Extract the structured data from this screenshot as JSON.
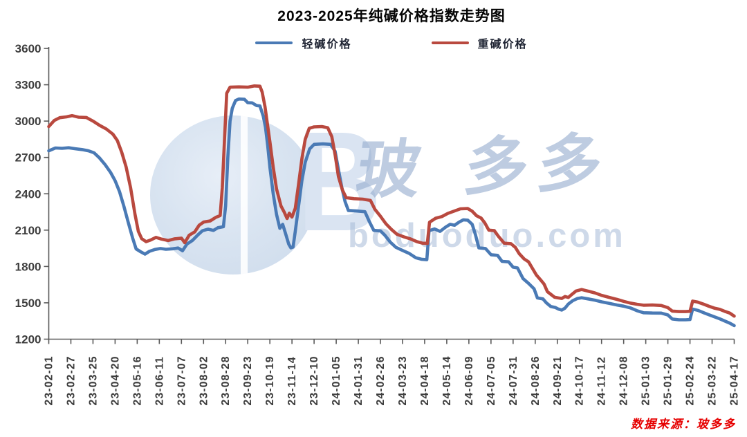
{
  "title": "2023-2025年纯碱价格指数走势图",
  "legend": [
    {
      "label": "轻碱价格",
      "color": "#4a7ab5"
    },
    {
      "label": "重碱价格",
      "color": "#b9493f"
    }
  ],
  "source_note": "数据来源：玻多多",
  "watermark": {
    "logo_letter": "B",
    "brand_chars": [
      "玻",
      "多",
      "多"
    ],
    "domain": "boduoduo.com"
  },
  "colors": {
    "axis": "#595959",
    "tick_label": "#3d3d3d",
    "title": "#050505",
    "source": "#e60000"
  },
  "chart_data": {
    "type": "line",
    "title": "2023-2025年纯碱价格指数走势图",
    "xlabel": "",
    "ylabel": "",
    "ylim": [
      1200,
      3600
    ],
    "y_ticks": [
      3600,
      3300,
      3000,
      2700,
      2400,
      2100,
      1800,
      1500,
      1200
    ],
    "grid": false,
    "legend_position": "top",
    "x_note": "series points use fractional tick index 0-31 mapped to x_tick_labels dates",
    "x_tick_labels": [
      "23-02-01",
      "23-02-27",
      "23-03-25",
      "23-04-20",
      "23-05-16",
      "23-06-11",
      "23-07-07",
      "23-08-02",
      "23-08-28",
      "23-09-23",
      "23-10-19",
      "23-11-14",
      "23-12-10",
      "24-01-05",
      "24-01-31",
      "24-02-26",
      "24-03-23",
      "24-04-18",
      "24-05-14",
      "24-06-09",
      "24-07-05",
      "24-07-31",
      "24-08-26",
      "24-09-21",
      "24-10-17",
      "24-11-12",
      "24-12-08",
      "25-01-03",
      "25-01-29",
      "25-02-24",
      "25-03-22",
      "25-04-17"
    ],
    "series": [
      {
        "name": "轻碱价格",
        "color": "#4a7ab5",
        "points": [
          [
            0,
            2755
          ],
          [
            0.3,
            2778
          ],
          [
            0.6,
            2775
          ],
          [
            0.9,
            2780
          ],
          [
            1.2,
            2772
          ],
          [
            1.5,
            2765
          ],
          [
            1.8,
            2755
          ],
          [
            2.05,
            2738
          ],
          [
            2.3,
            2695
          ],
          [
            2.55,
            2640
          ],
          [
            2.8,
            2575
          ],
          [
            3.0,
            2508
          ],
          [
            3.2,
            2418
          ],
          [
            3.4,
            2295
          ],
          [
            3.6,
            2160
          ],
          [
            3.8,
            2030
          ],
          [
            3.95,
            1945
          ],
          [
            4.15,
            1922
          ],
          [
            4.35,
            1902
          ],
          [
            4.55,
            1925
          ],
          [
            4.8,
            1940
          ],
          [
            5.05,
            1948
          ],
          [
            5.3,
            1942
          ],
          [
            5.6,
            1946
          ],
          [
            5.85,
            1952
          ],
          [
            6.05,
            1930
          ],
          [
            6.25,
            1985
          ],
          [
            6.5,
            2015
          ],
          [
            6.75,
            2062
          ],
          [
            6.95,
            2095
          ],
          [
            7.2,
            2108
          ],
          [
            7.45,
            2098
          ],
          [
            7.65,
            2120
          ],
          [
            7.9,
            2128
          ],
          [
            8.0,
            2300
          ],
          [
            8.1,
            2700
          ],
          [
            8.2,
            3000
          ],
          [
            8.3,
            3105
          ],
          [
            8.45,
            3170
          ],
          [
            8.6,
            3182
          ],
          [
            8.85,
            3180
          ],
          [
            9.0,
            3152
          ],
          [
            9.2,
            3150
          ],
          [
            9.4,
            3128
          ],
          [
            9.55,
            3125
          ],
          [
            9.7,
            3040
          ],
          [
            9.8,
            2950
          ],
          [
            9.9,
            2800
          ],
          [
            10.0,
            2620
          ],
          [
            10.15,
            2400
          ],
          [
            10.3,
            2230
          ],
          [
            10.45,
            2115
          ],
          [
            10.58,
            2148
          ],
          [
            10.72,
            2065
          ],
          [
            10.85,
            1985
          ],
          [
            10.95,
            1954
          ],
          [
            11.05,
            1960
          ],
          [
            11.15,
            2090
          ],
          [
            11.3,
            2300
          ],
          [
            11.45,
            2510
          ],
          [
            11.6,
            2660
          ],
          [
            11.8,
            2770
          ],
          [
            12.0,
            2808
          ],
          [
            12.4,
            2812
          ],
          [
            12.75,
            2808
          ],
          [
            12.95,
            2750
          ],
          [
            13.1,
            2600
          ],
          [
            13.25,
            2455
          ],
          [
            13.4,
            2335
          ],
          [
            13.55,
            2262
          ],
          [
            13.9,
            2258
          ],
          [
            14.3,
            2252
          ],
          [
            14.5,
            2170
          ],
          [
            14.7,
            2098
          ],
          [
            15.0,
            2094
          ],
          [
            15.2,
            2058
          ],
          [
            15.45,
            2000
          ],
          [
            15.7,
            1958
          ],
          [
            16.0,
            1932
          ],
          [
            16.3,
            1908
          ],
          [
            16.6,
            1872
          ],
          [
            16.85,
            1860
          ],
          [
            17.1,
            1856
          ],
          [
            17.2,
            2095
          ],
          [
            17.45,
            2110
          ],
          [
            17.7,
            2090
          ],
          [
            17.95,
            2125
          ],
          [
            18.15,
            2148
          ],
          [
            18.35,
            2140
          ],
          [
            18.55,
            2165
          ],
          [
            18.75,
            2185
          ],
          [
            18.95,
            2182
          ],
          [
            19.15,
            2148
          ],
          [
            19.3,
            2060
          ],
          [
            19.45,
            1954
          ],
          [
            19.75,
            1948
          ],
          [
            20.0,
            1897
          ],
          [
            20.3,
            1892
          ],
          [
            20.5,
            1842
          ],
          [
            20.8,
            1838
          ],
          [
            21.0,
            1794
          ],
          [
            21.2,
            1788
          ],
          [
            21.45,
            1700
          ],
          [
            21.7,
            1660
          ],
          [
            21.95,
            1615
          ],
          [
            22.1,
            1540
          ],
          [
            22.35,
            1532
          ],
          [
            22.5,
            1500
          ],
          [
            22.7,
            1470
          ],
          [
            22.9,
            1462
          ],
          [
            23.05,
            1448
          ],
          [
            23.2,
            1440
          ],
          [
            23.35,
            1456
          ],
          [
            23.5,
            1490
          ],
          [
            23.7,
            1518
          ],
          [
            23.9,
            1535
          ],
          [
            24.1,
            1542
          ],
          [
            24.4,
            1532
          ],
          [
            24.7,
            1522
          ],
          [
            25.0,
            1508
          ],
          [
            25.35,
            1495
          ],
          [
            25.7,
            1482
          ],
          [
            26.0,
            1472
          ],
          [
            26.3,
            1458
          ],
          [
            26.6,
            1435
          ],
          [
            26.9,
            1418
          ],
          [
            27.3,
            1416
          ],
          [
            27.7,
            1415
          ],
          [
            28.0,
            1400
          ],
          [
            28.2,
            1366
          ],
          [
            28.5,
            1360
          ],
          [
            28.8,
            1360
          ],
          [
            29.0,
            1362
          ],
          [
            29.12,
            1448
          ],
          [
            29.35,
            1438
          ],
          [
            29.6,
            1420
          ],
          [
            29.85,
            1402
          ],
          [
            30.1,
            1385
          ],
          [
            30.35,
            1368
          ],
          [
            30.6,
            1348
          ],
          [
            30.8,
            1332
          ],
          [
            31,
            1312
          ]
        ]
      },
      {
        "name": "重碱价格",
        "color": "#b9493f",
        "points": [
          [
            0,
            2955
          ],
          [
            0.25,
            3005
          ],
          [
            0.5,
            3028
          ],
          [
            0.8,
            3035
          ],
          [
            1.05,
            3045
          ],
          [
            1.35,
            3032
          ],
          [
            1.7,
            3030
          ],
          [
            2.0,
            3000
          ],
          [
            2.3,
            2965
          ],
          [
            2.6,
            2935
          ],
          [
            2.9,
            2892
          ],
          [
            3.1,
            2840
          ],
          [
            3.3,
            2742
          ],
          [
            3.5,
            2620
          ],
          [
            3.7,
            2450
          ],
          [
            3.9,
            2230
          ],
          [
            4.05,
            2090
          ],
          [
            4.2,
            2030
          ],
          [
            4.4,
            2005
          ],
          [
            4.6,
            2018
          ],
          [
            4.85,
            2040
          ],
          [
            5.1,
            2026
          ],
          [
            5.4,
            2014
          ],
          [
            5.7,
            2028
          ],
          [
            6.0,
            2034
          ],
          [
            6.15,
            1996
          ],
          [
            6.35,
            2058
          ],
          [
            6.6,
            2085
          ],
          [
            6.8,
            2140
          ],
          [
            7.0,
            2166
          ],
          [
            7.3,
            2176
          ],
          [
            7.55,
            2205
          ],
          [
            7.75,
            2220
          ],
          [
            7.85,
            2450
          ],
          [
            7.95,
            2850
          ],
          [
            8.05,
            3230
          ],
          [
            8.2,
            3280
          ],
          [
            8.6,
            3282
          ],
          [
            9.0,
            3280
          ],
          [
            9.3,
            3290
          ],
          [
            9.55,
            3288
          ],
          [
            9.65,
            3240
          ],
          [
            9.78,
            3120
          ],
          [
            9.9,
            2960
          ],
          [
            10.0,
            2830
          ],
          [
            10.15,
            2620
          ],
          [
            10.3,
            2440
          ],
          [
            10.5,
            2300
          ],
          [
            10.65,
            2248
          ],
          [
            10.78,
            2196
          ],
          [
            10.88,
            2240
          ],
          [
            11.0,
            2208
          ],
          [
            11.15,
            2280
          ],
          [
            11.3,
            2480
          ],
          [
            11.45,
            2690
          ],
          [
            11.6,
            2850
          ],
          [
            11.78,
            2940
          ],
          [
            12.0,
            2952
          ],
          [
            12.35,
            2955
          ],
          [
            12.62,
            2945
          ],
          [
            12.8,
            2872
          ],
          [
            12.95,
            2722
          ],
          [
            13.1,
            2542
          ],
          [
            13.28,
            2432
          ],
          [
            13.45,
            2368
          ],
          [
            13.8,
            2360
          ],
          [
            14.2,
            2356
          ],
          [
            14.55,
            2345
          ],
          [
            14.75,
            2272
          ],
          [
            15.0,
            2215
          ],
          [
            15.25,
            2152
          ],
          [
            15.5,
            2105
          ],
          [
            15.75,
            2065
          ],
          [
            16.05,
            2045
          ],
          [
            16.35,
            2028
          ],
          [
            16.65,
            2005
          ],
          [
            16.9,
            1992
          ],
          [
            17.12,
            1990
          ],
          [
            17.22,
            2165
          ],
          [
            17.5,
            2198
          ],
          [
            17.78,
            2212
          ],
          [
            18.05,
            2238
          ],
          [
            18.35,
            2258
          ],
          [
            18.62,
            2276
          ],
          [
            18.95,
            2278
          ],
          [
            19.15,
            2256
          ],
          [
            19.35,
            2218
          ],
          [
            19.55,
            2200
          ],
          [
            19.72,
            2160
          ],
          [
            19.9,
            2100
          ],
          [
            20.15,
            2096
          ],
          [
            20.35,
            2046
          ],
          [
            20.6,
            1992
          ],
          [
            20.9,
            1988
          ],
          [
            21.1,
            1958
          ],
          [
            21.28,
            1905
          ],
          [
            21.5,
            1862
          ],
          [
            21.7,
            1838
          ],
          [
            21.88,
            1782
          ],
          [
            22.05,
            1730
          ],
          [
            22.25,
            1688
          ],
          [
            22.4,
            1655
          ],
          [
            22.55,
            1592
          ],
          [
            22.72,
            1568
          ],
          [
            22.88,
            1546
          ],
          [
            23.05,
            1540
          ],
          [
            23.2,
            1536
          ],
          [
            23.35,
            1552
          ],
          [
            23.5,
            1544
          ],
          [
            23.65,
            1568
          ],
          [
            23.85,
            1598
          ],
          [
            24.1,
            1610
          ],
          [
            24.4,
            1596
          ],
          [
            24.7,
            1582
          ],
          [
            25.0,
            1562
          ],
          [
            25.35,
            1545
          ],
          [
            25.7,
            1528
          ],
          [
            26.0,
            1512
          ],
          [
            26.3,
            1498
          ],
          [
            26.6,
            1488
          ],
          [
            26.9,
            1480
          ],
          [
            27.3,
            1482
          ],
          [
            27.7,
            1478
          ],
          [
            28.0,
            1460
          ],
          [
            28.2,
            1432
          ],
          [
            28.5,
            1428
          ],
          [
            28.8,
            1428
          ],
          [
            29.0,
            1430
          ],
          [
            29.12,
            1514
          ],
          [
            29.35,
            1506
          ],
          [
            29.6,
            1490
          ],
          [
            29.85,
            1472
          ],
          [
            30.1,
            1456
          ],
          [
            30.35,
            1446
          ],
          [
            30.6,
            1428
          ],
          [
            30.8,
            1415
          ],
          [
            31,
            1390
          ]
        ]
      }
    ]
  }
}
